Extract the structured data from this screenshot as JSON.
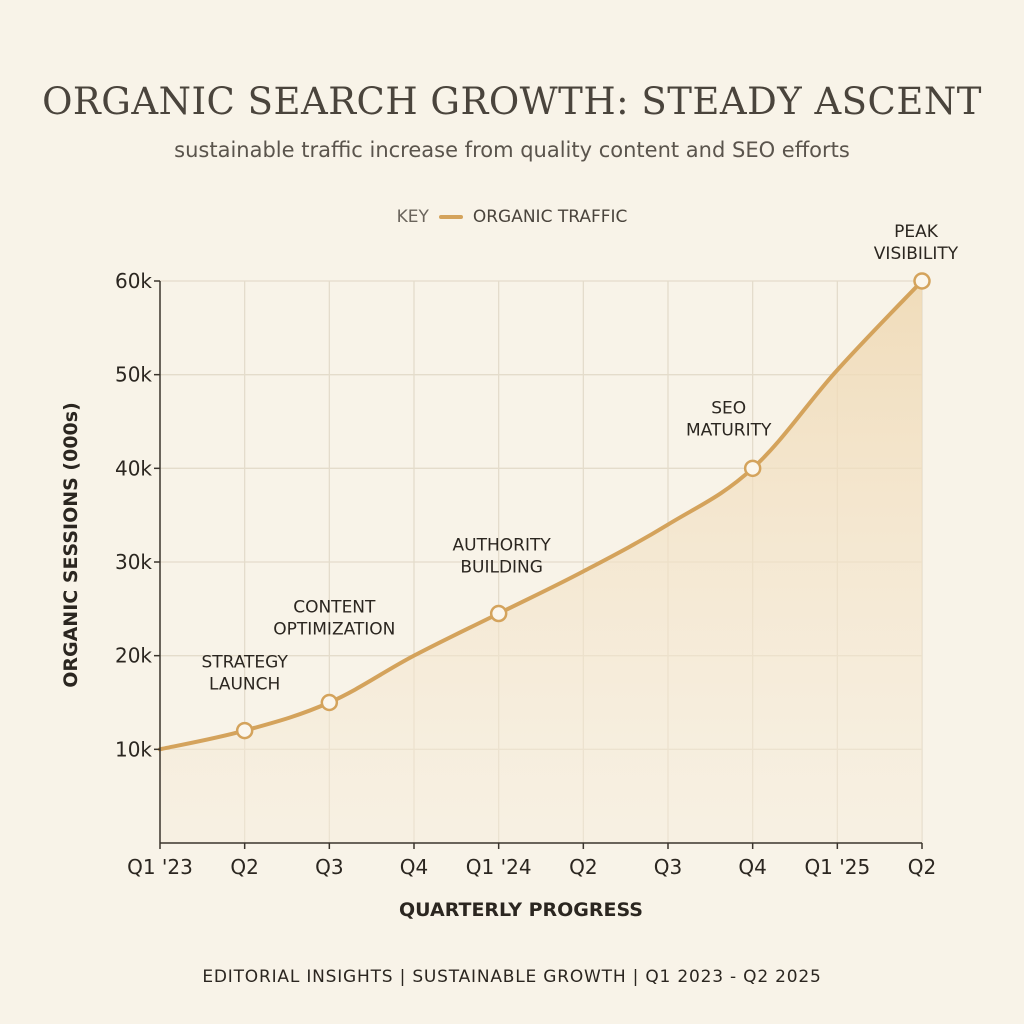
{
  "title": "ORGANIC SEARCH GROWTH: STEADY ASCENT",
  "subtitle": "sustainable traffic increase from quality content and SEO efforts",
  "legend": {
    "key_label": "KEY",
    "series_label": "ORGANIC TRAFFIC",
    "placement": "top-center"
  },
  "footer": "EDITORIAL INSIGHTS  |  SUSTAINABLE GROWTH  |  Q1 2023 - Q2 2025",
  "colors": {
    "line": "#d4a35c",
    "fill": "#f0dcbc",
    "grid": "#e4dccb",
    "axis": "#3a342c",
    "marker_fill": "#fbf6ec",
    "background": "#f8f3e8"
  },
  "chart_data": {
    "type": "area",
    "xlabel": "QUARTERLY PROGRESS",
    "ylabel": "ORGANIC SESSIONS (000s)",
    "categories": [
      "Q1 '23",
      "Q2",
      "Q3",
      "Q4",
      "Q1 '24",
      "Q2",
      "Q3",
      "Q4",
      "Q1 '25",
      "Q2"
    ],
    "ylim": [
      0,
      60
    ],
    "yticks": [
      10,
      20,
      30,
      40,
      50,
      60
    ],
    "ytick_labels": [
      "10k",
      "20k",
      "30k",
      "40k",
      "50k",
      "60k"
    ],
    "grid": true,
    "series": [
      {
        "name": "ORGANIC TRAFFIC",
        "values": [
          10,
          12,
          15,
          20,
          24.5,
          29,
          34,
          40,
          50.5,
          60
        ]
      }
    ],
    "annotations": [
      {
        "index": 1,
        "lines": [
          "STRATEGY",
          "LAUNCH"
        ]
      },
      {
        "index": 2,
        "lines": [
          "CONTENT",
          "OPTIMIZATION"
        ]
      },
      {
        "index": 4,
        "lines": [
          "AUTHORITY",
          "BUILDING"
        ]
      },
      {
        "index": 7,
        "lines": [
          "SEO",
          "MATURITY"
        ]
      },
      {
        "index": 9,
        "lines": [
          "PEAK",
          "VISIBILITY"
        ]
      }
    ]
  }
}
